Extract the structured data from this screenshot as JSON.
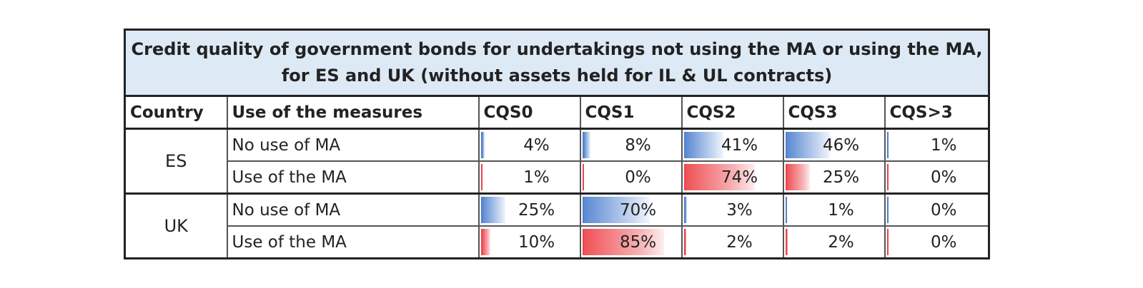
{
  "title": "Credit quality of government bonds for undertakings not using the MA or using the MA, for ES and UK (without assets held for IL & UL contracts)",
  "headers": [
    "Country",
    "Use of the measures",
    "CQS0",
    "CQS1",
    "CQS2",
    "CQS3",
    "CQS>3"
  ],
  "groups": [
    {
      "country": "ES",
      "rows": [
        {
          "measure": "No use of MA",
          "values": [
            "4%",
            "8%",
            "41%",
            "46%",
            "1%"
          ],
          "fractions": [
            0.04,
            0.08,
            0.41,
            0.46,
            0.01
          ],
          "color": "#5b8ad2"
        },
        {
          "measure": "Use of the MA",
          "values": [
            "1%",
            "0%",
            "74%",
            "25%",
            "0%"
          ],
          "fractions": [
            0.01,
            0.0,
            0.74,
            0.25,
            0.0
          ],
          "color": "#ef5257"
        }
      ]
    },
    {
      "country": "UK",
      "rows": [
        {
          "measure": "No use of MA",
          "values": [
            "25%",
            "70%",
            "3%",
            "1%",
            "0%"
          ],
          "fractions": [
            0.25,
            0.7,
            0.03,
            0.01,
            0.0
          ],
          "color": "#5b8ad2"
        },
        {
          "measure": "Use of the MA",
          "values": [
            "10%",
            "85%",
            "2%",
            "2%",
            "0%"
          ],
          "fractions": [
            0.1,
            0.85,
            0.02,
            0.02,
            0.0
          ],
          "color": "#ef5257"
        }
      ]
    }
  ]
}
